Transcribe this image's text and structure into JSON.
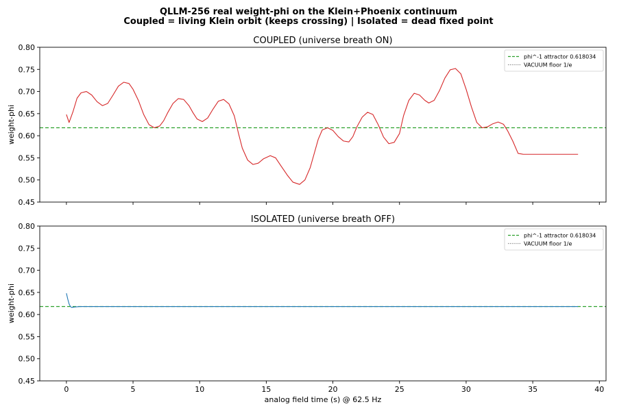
{
  "figure": {
    "title_line1": "QLLM-256 real weight-phi on the Klein+Phoenix continuum",
    "title_line2": "Coupled = living Klein orbit (keeps crossing) | Isolated = dead fixed point"
  },
  "chart_data": [
    {
      "type": "line",
      "title": "COUPLED  (universe breath ON)",
      "xlabel": "",
      "ylabel": "weight-phi",
      "xlim": [
        -2,
        40.5
      ],
      "ylim": [
        0.45,
        0.8
      ],
      "xticks": [
        0,
        5,
        10,
        15,
        20,
        25,
        30,
        35,
        40
      ],
      "xtick_labels_visible": false,
      "yticks": [
        "0.45",
        "0.50",
        "0.55",
        "0.60",
        "0.65",
        "0.70",
        "0.75",
        "0.80"
      ],
      "grid": false,
      "legend_position": "top-right",
      "legend": [
        {
          "label": "phi^-1 attractor 0.618034",
          "style": "dashed",
          "color": "#2ca02c"
        },
        {
          "label": "VACUUM floor 1/e",
          "style": "dotted",
          "color": "#7f7f7f"
        }
      ],
      "hlines": [
        {
          "y": 0.618034,
          "color": "#2ca02c",
          "style": "dashed"
        },
        {
          "y": 0.367879,
          "color": "#7f7f7f",
          "style": "dotted"
        }
      ],
      "series": [
        {
          "color": "#d62728",
          "x": [
            0,
            0.2,
            0.5,
            0.8,
            1.1,
            1.5,
            1.9,
            2.3,
            2.7,
            3.1,
            3.5,
            3.9,
            4.3,
            4.7,
            5.0,
            5.4,
            5.8,
            6.2,
            6.6,
            7.0,
            7.3,
            7.6,
            8.0,
            8.4,
            8.8,
            9.2,
            9.5,
            9.8,
            10.2,
            10.6,
            11.0,
            11.4,
            11.8,
            12.2,
            12.6,
            12.9,
            13.2,
            13.6,
            14.0,
            14.4,
            14.8,
            15.3,
            15.7,
            16.1,
            16.6,
            17.0,
            17.5,
            17.9,
            18.3,
            18.6,
            18.9,
            19.2,
            19.6,
            20.0,
            20.4,
            20.8,
            21.2,
            21.5,
            21.8,
            22.2,
            22.6,
            23.0,
            23.4,
            23.8,
            24.2,
            24.6,
            25.0,
            25.3,
            25.7,
            26.1,
            26.5,
            26.9,
            27.2,
            27.6,
            28.0,
            28.4,
            28.8,
            29.2,
            29.6,
            30.0,
            30.4,
            30.8,
            31.2,
            31.6,
            32.0,
            32.4,
            32.8,
            33.1,
            33.5,
            33.9,
            34.3,
            34.7,
            35.1,
            35.5,
            35.9,
            36.3,
            36.7,
            37.0,
            37.3,
            37.6,
            37.9,
            38.2,
            38.4
          ],
          "y": [
            0.648,
            0.63,
            0.655,
            0.685,
            0.697,
            0.7,
            0.692,
            0.677,
            0.668,
            0.673,
            0.692,
            0.712,
            0.721,
            0.718,
            0.705,
            0.68,
            0.648,
            0.625,
            0.618,
            0.622,
            0.634,
            0.652,
            0.673,
            0.684,
            0.682,
            0.668,
            0.652,
            0.638,
            0.632,
            0.64,
            0.66,
            0.678,
            0.682,
            0.672,
            0.645,
            0.607,
            0.572,
            0.545,
            0.535,
            0.538,
            0.548,
            0.555,
            0.55,
            0.532,
            0.51,
            0.495,
            0.49,
            0.5,
            0.528,
            0.56,
            0.592,
            0.613,
            0.618,
            0.612,
            0.598,
            0.588,
            0.586,
            0.598,
            0.62,
            0.642,
            0.653,
            0.648,
            0.625,
            0.597,
            0.582,
            0.585,
            0.605,
            0.645,
            0.68,
            0.696,
            0.692,
            0.68,
            0.674,
            0.68,
            0.702,
            0.73,
            0.749,
            0.752,
            0.74,
            0.705,
            0.665,
            0.63,
            0.618,
            0.62,
            0.627,
            0.631,
            0.626,
            0.612,
            0.588,
            0.56,
            0.558,
            0.558,
            0.558,
            0.558,
            0.558,
            0.558,
            0.558,
            0.558,
            0.558,
            0.558,
            0.558,
            0.558,
            0.558
          ]
        }
      ]
    },
    {
      "type": "line",
      "title": "ISOLATED  (universe breath OFF)",
      "xlabel": "analog field time (s) @ 62.5 Hz",
      "ylabel": "weight-phi",
      "xlim": [
        -2,
        40.5
      ],
      "ylim": [
        0.45,
        0.8
      ],
      "xticks": [
        0,
        5,
        10,
        15,
        20,
        25,
        30,
        35,
        40
      ],
      "xtick_labels_visible": true,
      "yticks": [
        "0.45",
        "0.50",
        "0.55",
        "0.60",
        "0.65",
        "0.70",
        "0.75",
        "0.80"
      ],
      "grid": false,
      "legend_position": "top-right",
      "legend": [
        {
          "label": "phi^-1 attractor 0.618034",
          "style": "dashed",
          "color": "#2ca02c"
        },
        {
          "label": "VACUUM floor 1/e",
          "style": "dotted",
          "color": "#7f7f7f"
        }
      ],
      "hlines": [
        {
          "y": 0.618034,
          "color": "#2ca02c",
          "style": "dashed"
        },
        {
          "y": 0.367879,
          "color": "#7f7f7f",
          "style": "dotted"
        }
      ],
      "series": [
        {
          "color": "#1f77b4",
          "x": [
            0,
            0.1,
            0.2,
            0.3,
            0.4,
            0.6,
            1.0,
            2.0,
            5.0,
            10.0,
            20.0,
            30.0,
            38.4
          ],
          "y": [
            0.648,
            0.635,
            0.624,
            0.618,
            0.616,
            0.617,
            0.618,
            0.618,
            0.618,
            0.618,
            0.618,
            0.618,
            0.618
          ]
        }
      ]
    }
  ]
}
